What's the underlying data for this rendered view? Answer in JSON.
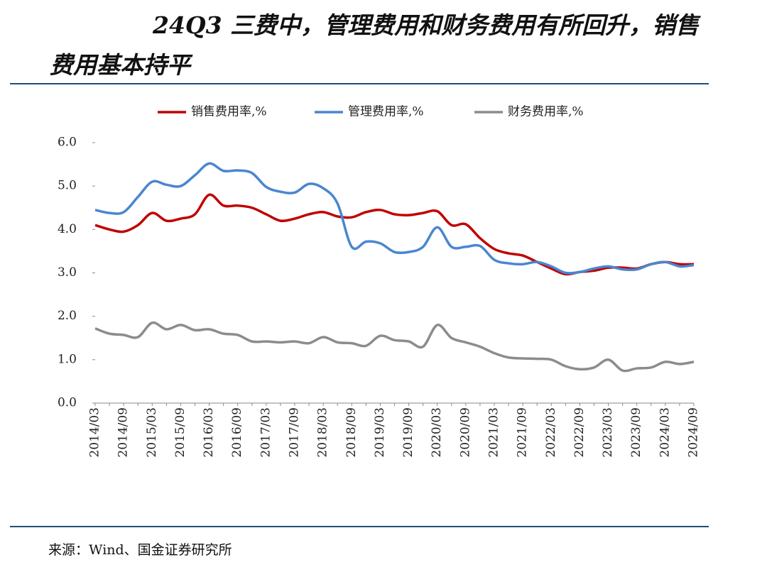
{
  "chart_data": {
    "type": "line",
    "title": "24Q3 三费中，管理费用和财务费用有所回升，销售费用基本持平",
    "source": "来源：Wind、国金证券研究所",
    "categories": [
      "2014/03",
      null,
      "2014/09",
      null,
      "2015/03",
      null,
      "2015/09",
      null,
      "2016/03",
      null,
      "2016/09",
      null,
      "2017/03",
      null,
      "2017/09",
      null,
      "2018/03",
      null,
      "2018/09",
      null,
      "2019/03",
      null,
      "2019/09",
      null,
      "2020/03",
      null,
      "2020/09",
      null,
      "2021/03",
      null,
      "2021/09",
      null,
      "2022/03",
      null,
      "2022/09",
      null,
      "2023/03",
      null,
      "2023/09",
      null,
      "2024/03",
      null,
      "2024/09"
    ],
    "series": [
      {
        "name": "销售费用率,%",
        "color": "#c00000",
        "values": [
          4.1,
          4.0,
          3.95,
          4.1,
          4.38,
          4.2,
          4.25,
          4.35,
          4.8,
          4.55,
          4.55,
          4.5,
          4.35,
          4.2,
          4.25,
          4.35,
          4.4,
          4.3,
          4.28,
          4.4,
          4.45,
          4.35,
          4.33,
          4.38,
          4.42,
          4.1,
          4.12,
          3.8,
          3.55,
          3.45,
          3.4,
          3.25,
          3.1,
          2.97,
          3.02,
          3.05,
          3.12,
          3.12,
          3.1,
          3.2,
          3.25,
          3.2,
          3.2
        ]
      },
      {
        "name": "管理费用率,%",
        "color": "#4a86d0",
        "values": [
          4.45,
          4.38,
          4.4,
          4.75,
          5.1,
          5.03,
          5.0,
          5.25,
          5.52,
          5.35,
          5.36,
          5.3,
          4.98,
          4.87,
          4.85,
          5.05,
          4.95,
          4.6,
          3.6,
          3.72,
          3.68,
          3.48,
          3.48,
          3.6,
          4.05,
          3.6,
          3.6,
          3.62,
          3.3,
          3.22,
          3.2,
          3.25,
          3.15,
          3.0,
          3.02,
          3.1,
          3.15,
          3.08,
          3.08,
          3.2,
          3.25,
          3.15,
          3.18
        ]
      },
      {
        "name": "财务费用率,%",
        "color": "#8c8c8c",
        "values": [
          1.72,
          1.6,
          1.57,
          1.52,
          1.85,
          1.7,
          1.8,
          1.68,
          1.7,
          1.6,
          1.57,
          1.42,
          1.42,
          1.4,
          1.42,
          1.38,
          1.52,
          1.4,
          1.38,
          1.32,
          1.55,
          1.45,
          1.42,
          1.3,
          1.8,
          1.5,
          1.4,
          1.3,
          1.15,
          1.05,
          1.03,
          1.02,
          1.0,
          0.85,
          0.78,
          0.82,
          1.0,
          0.75,
          0.8,
          0.82,
          0.95,
          0.9,
          0.95
        ]
      }
    ],
    "ylim": [
      0,
      6
    ],
    "yticks": [
      {
        "value": 0,
        "label": "0.0"
      },
      {
        "value": 1,
        "label": "1.0"
      },
      {
        "value": 2,
        "label": "2.0"
      },
      {
        "value": 3,
        "label": "3.0"
      },
      {
        "value": 4,
        "label": "4.0"
      },
      {
        "value": 5,
        "label": "5.0"
      },
      {
        "value": 6,
        "label": "6.0"
      }
    ],
    "grid": false,
    "legend": "top"
  }
}
